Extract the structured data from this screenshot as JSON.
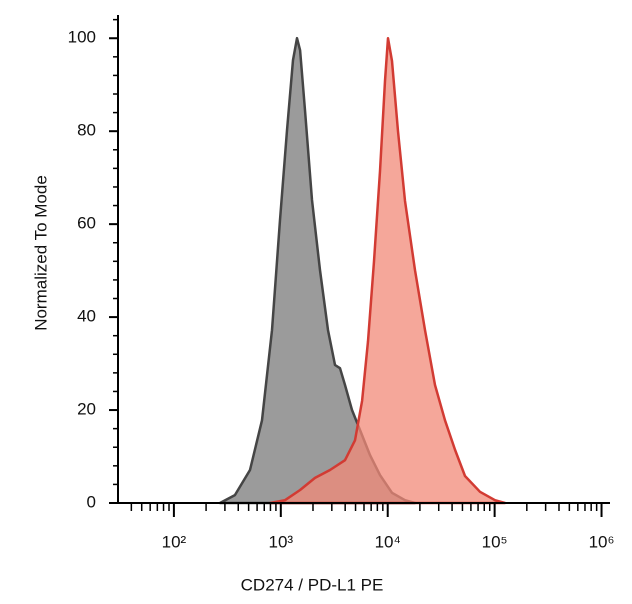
{
  "chart_data": {
    "type": "histogram-overlay",
    "xlabel": "CD274 / PD-L1 PE",
    "ylabel": "Normalized To Mode",
    "xscale": "log",
    "xlim": [
      30,
      1200000
    ],
    "xticks": [
      {
        "value": 100,
        "label": "10²"
      },
      {
        "value": 1000,
        "label": "10³"
      },
      {
        "value": 10000,
        "label": "10⁴"
      },
      {
        "value": 100000,
        "label": "10⁵"
      },
      {
        "value": 1000000,
        "label": "10⁶"
      }
    ],
    "ylim": [
      0,
      105
    ],
    "yticks": [
      0,
      20,
      40,
      60,
      80,
      100
    ],
    "series": [
      {
        "color": "#7a7a7a",
        "edge": "#454545",
        "x": [
          270,
          372,
          515,
          667,
          828,
          982,
          1143,
          1300,
          1416,
          1514,
          1683,
          1959,
          2328,
          2762,
          3213,
          3581,
          3981,
          4634,
          5508,
          6823,
          8472,
          10960,
          14520,
          17990
        ],
        "values": [
          0,
          1.7,
          7.1,
          17.8,
          37.2,
          60.9,
          80.2,
          95.3,
          100,
          97.4,
          84.5,
          65.2,
          50.1,
          37.2,
          29.7,
          29.0,
          25.4,
          20.0,
          15.7,
          10.3,
          6.0,
          2.2,
          0.6,
          0
        ]
      },
      {
        "color": "#f28a78",
        "edge": "#d23b33",
        "x": [
          792,
          1094,
          1514,
          2089,
          2884,
          3981,
          4943,
          5754,
          6546,
          7447,
          8472,
          9441,
          10070,
          10960,
          12470,
          14520,
          17990,
          22330,
          27670,
          34360,
          42660,
          52840,
          72950,
          100900,
          125000
        ],
        "values": [
          0,
          0.6,
          2.8,
          5.4,
          7.1,
          9.2,
          13.5,
          22.0,
          34.8,
          52.0,
          71.4,
          90.8,
          100,
          95.1,
          80.0,
          65.0,
          50.1,
          37.2,
          25.4,
          17.8,
          11.4,
          5.8,
          2.4,
          0.6,
          0
        ]
      }
    ]
  }
}
